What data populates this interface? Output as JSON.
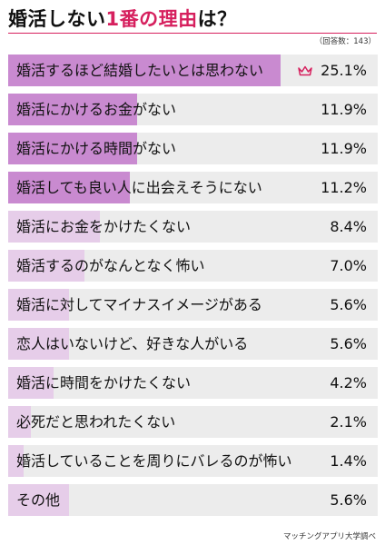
{
  "header": {
    "title_main": "婚活しない",
    "title_accent": "1番の理由",
    "title_suffix": "は？",
    "respondents": "（回答数：143）"
  },
  "footer": {
    "source": "マッチングアプリ大学調べ"
  },
  "colors": {
    "accent": "#d6205e",
    "bar_dark": "#c98ad0",
    "bar_light": "#e6cde9",
    "track": "#ececec"
  },
  "icons": {
    "top_item": "crown-icon"
  },
  "chart_data": {
    "type": "bar",
    "orientation": "horizontal",
    "title": "婚活しない1番の理由は？",
    "subtitle": "（回答数：143）",
    "unit": "%",
    "categories": [
      "婚活するほど結婚したいとは思わない",
      "婚活にかけるお金がない",
      "婚活にかける時間がない",
      "婚活しても良い人に出会えそうにない",
      "婚活にお金をかけたくない",
      "婚活するのがなんとなく怖い",
      "婚活に対してマイナスイメージがある",
      "恋人はいないけど、好きな人がいる",
      "婚活に時間をかけたくない",
      "必死だと思われたくない",
      "婚活していることを周りにバレるのが怖い",
      "その他"
    ],
    "values": [
      25.1,
      11.9,
      11.9,
      11.2,
      8.4,
      7.0,
      5.6,
      5.6,
      4.2,
      2.1,
      1.4,
      5.6
    ],
    "value_labels": [
      "25.1%",
      "11.9%",
      "11.9%",
      "11.2%",
      "8.4%",
      "7.0%",
      "5.6%",
      "5.6%",
      "4.2%",
      "2.1%",
      "1.4%",
      "5.6%"
    ],
    "xlim": [
      0,
      34
    ],
    "highlight_top": 4
  }
}
